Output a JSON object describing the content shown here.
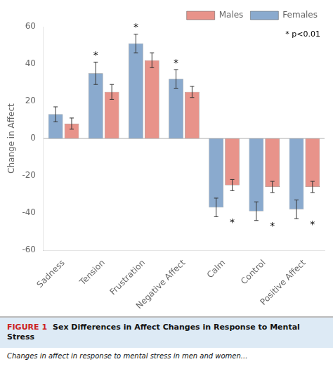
{
  "chart_data": {
    "type": "bar",
    "title": "Sex Differences in Affect Changes in Response to Mental Stress",
    "figure_label": "FIGURE 1",
    "subtitle": "Changes in affect in response to mental stress in men and women...",
    "categories": [
      "Sadness",
      "Tension",
      "Frustration",
      "Negative Affect",
      "Calm",
      "Control",
      "Positive Affect"
    ],
    "series": [
      {
        "name": "Females",
        "color": "#8AAACE",
        "values": [
          13,
          35,
          51,
          32,
          -37,
          -39,
          -38
        ],
        "errors": [
          4,
          6,
          5,
          5,
          5,
          5,
          5
        ],
        "significant": [
          false,
          true,
          true,
          true,
          false,
          false,
          false
        ]
      },
      {
        "name": "Males",
        "color": "#E8938A",
        "values": [
          8,
          25,
          42,
          25,
          -25,
          -26,
          -26
        ],
        "errors": [
          3,
          4,
          4,
          3,
          3,
          3,
          3
        ],
        "significant": [
          false,
          false,
          false,
          false,
          true,
          true,
          true
        ]
      }
    ],
    "ylabel": "Change in Affect",
    "ylim": [
      -60,
      60
    ],
    "yticks": [
      -60,
      -40,
      -20,
      0,
      20,
      40,
      60
    ],
    "grid": false,
    "legend": "upper right",
    "significance_marker": "*",
    "annotations": [
      "* p<0.01"
    ]
  }
}
